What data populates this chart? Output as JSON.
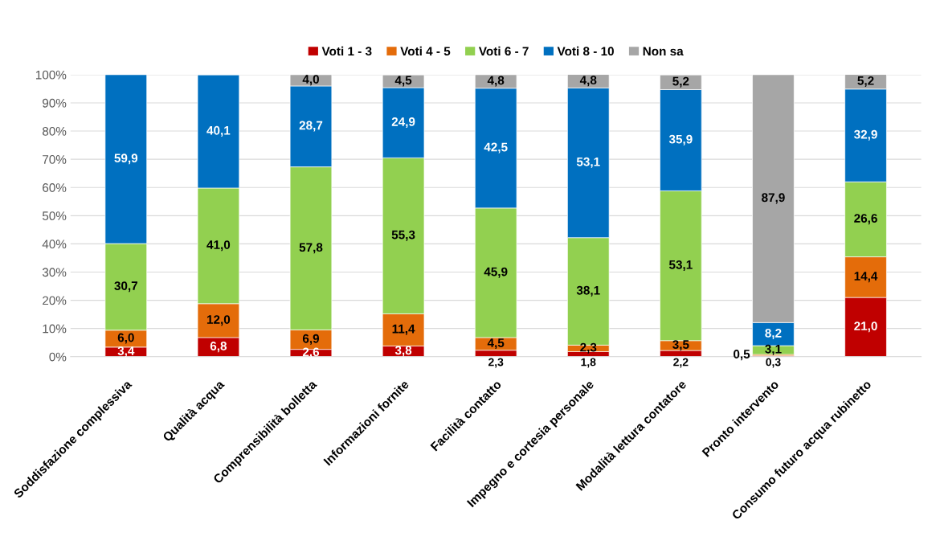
{
  "chart_data": {
    "type": "bar",
    "stacked": true,
    "legend": "top",
    "grid": "y",
    "categories": [
      "Soddisfazione complessiva",
      "Qualità acqua",
      "Comprensibilità bolletta",
      "Informazioni fornite",
      "Facilità contatto",
      "Impegno e cortesia personale",
      "Modalità lettura contatore",
      "Pronto intervento",
      "Consumo futuro acqua rubinetto"
    ],
    "series": [
      {
        "name": "Voti 1 - 3",
        "color": "#c00000",
        "values": [
          3.4,
          6.8,
          2.6,
          3.8,
          2.3,
          1.8,
          2.2,
          0.3,
          21.0
        ],
        "value_labels": [
          "3,4",
          "6,8",
          "2,6",
          "3,8",
          "2,3",
          "1,8",
          "2,2",
          "0,3",
          "21,0"
        ]
      },
      {
        "name": "Voti 4 - 5",
        "color": "#e46c0a",
        "values": [
          6.0,
          12.0,
          6.9,
          11.4,
          4.5,
          2.3,
          3.5,
          0.5,
          14.4
        ],
        "value_labels": [
          "6,0",
          "12,0",
          "6,9",
          "11,4",
          "4,5",
          "2,3",
          "3,5",
          "0,5",
          "14,4"
        ]
      },
      {
        "name": "Voti 6 - 7",
        "color": "#92d050",
        "values": [
          30.7,
          41.0,
          57.8,
          55.3,
          45.9,
          38.1,
          53.1,
          3.1,
          26.6
        ],
        "value_labels": [
          "30,7",
          "41,0",
          "57,8",
          "55,3",
          "45,9",
          "38,1",
          "53,1",
          "3,1",
          "26,6"
        ]
      },
      {
        "name": "Voti 8 - 10",
        "color": "#0070c0",
        "values": [
          59.9,
          40.1,
          28.7,
          24.9,
          42.5,
          53.1,
          35.9,
          8.2,
          32.9
        ],
        "value_labels": [
          "59,9",
          "40,1",
          "28,7",
          "24,9",
          "42,5",
          "53,1",
          "35,9",
          "8,2",
          "32,9"
        ]
      },
      {
        "name": "Non sa",
        "color": "#a6a6a6",
        "values": [
          null,
          null,
          4.0,
          4.5,
          4.8,
          4.8,
          5.2,
          87.9,
          5.2
        ],
        "value_labels": [
          null,
          null,
          "4,0",
          "4,5",
          "4,8",
          "4,8",
          "5,2",
          "87,9",
          "5,2"
        ]
      }
    ],
    "ylim": [
      0,
      100
    ],
    "yticks": [
      {
        "value": 0,
        "label": "0%"
      },
      {
        "value": 10,
        "label": "10%"
      },
      {
        "value": 20,
        "label": "20%"
      },
      {
        "value": 30,
        "label": "30%"
      },
      {
        "value": 40,
        "label": "40%"
      },
      {
        "value": 50,
        "label": "50%"
      },
      {
        "value": 60,
        "label": "60%"
      },
      {
        "value": 70,
        "label": "70%"
      },
      {
        "value": 80,
        "label": "80%"
      },
      {
        "value": 90,
        "label": "90%"
      },
      {
        "value": 100,
        "label": "100%"
      }
    ]
  }
}
